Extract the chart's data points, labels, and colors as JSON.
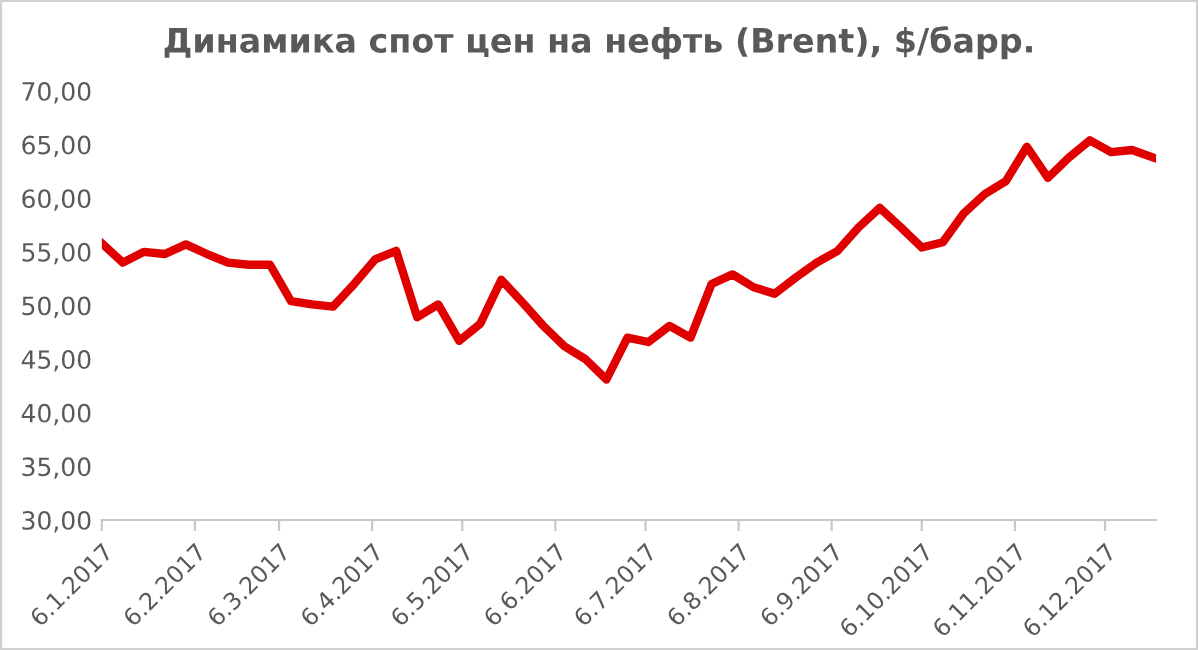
{
  "chart_data": {
    "type": "line",
    "title": "Динамика спот цен на нефть (Brent), $/барр.",
    "x": [
      "2017-01-06",
      "2017-01-13",
      "2017-01-20",
      "2017-01-27",
      "2017-02-03",
      "2017-02-10",
      "2017-02-17",
      "2017-02-24",
      "2017-03-03",
      "2017-03-10",
      "2017-03-17",
      "2017-03-24",
      "2017-03-31",
      "2017-04-07",
      "2017-04-14",
      "2017-04-21",
      "2017-04-28",
      "2017-05-05",
      "2017-05-12",
      "2017-05-19",
      "2017-05-26",
      "2017-06-02",
      "2017-06-09",
      "2017-06-16",
      "2017-06-23",
      "2017-06-30",
      "2017-07-07",
      "2017-07-14",
      "2017-07-21",
      "2017-07-28",
      "2017-08-04",
      "2017-08-11",
      "2017-08-18",
      "2017-08-25",
      "2017-09-01",
      "2017-09-08",
      "2017-09-15",
      "2017-09-22",
      "2017-09-29",
      "2017-10-06",
      "2017-10-13",
      "2017-10-20",
      "2017-10-27",
      "2017-11-03",
      "2017-11-10",
      "2017-11-17",
      "2017-11-24",
      "2017-12-01",
      "2017-12-08",
      "2017-12-15",
      "2017-12-22"
    ],
    "series": [
      {
        "color": "#e00000",
        "values": [
          55.8,
          54.0,
          55.0,
          54.8,
          55.7,
          54.8,
          54.0,
          53.8,
          53.8,
          50.4,
          50.1,
          49.9,
          52.0,
          54.3,
          55.1,
          48.9,
          50.1,
          46.7,
          48.3,
          52.4,
          50.3,
          48.1,
          46.2,
          45.0,
          43.1,
          47.0,
          46.6,
          48.1,
          47.0,
          52.0,
          52.9,
          51.7,
          51.1,
          52.6,
          54.0,
          55.1,
          57.3,
          59.1,
          57.3,
          55.4,
          55.9,
          58.6,
          60.4,
          61.6,
          64.8,
          61.9,
          63.8,
          65.4,
          64.3,
          64.5,
          63.8
        ]
      }
    ],
    "xlim": [
      "2017-01-06",
      "2017-12-23"
    ],
    "xticks": [
      {
        "value": "2017-01-06",
        "label": "6.1.2017"
      },
      {
        "value": "2017-02-06",
        "label": "6.2.2017"
      },
      {
        "value": "2017-03-06",
        "label": "6.3.2017"
      },
      {
        "value": "2017-04-06",
        "label": "6.4.2017"
      },
      {
        "value": "2017-05-06",
        "label": "6.5.2017"
      },
      {
        "value": "2017-06-06",
        "label": "6.6.2017"
      },
      {
        "value": "2017-07-06",
        "label": "6.7.2017"
      },
      {
        "value": "2017-08-06",
        "label": "6.8.2017"
      },
      {
        "value": "2017-09-06",
        "label": "6.9.2017"
      },
      {
        "value": "2017-10-06",
        "label": "6.10.2017"
      },
      {
        "value": "2017-11-06",
        "label": "6.11.2017"
      },
      {
        "value": "2017-12-06",
        "label": "6.12.2017"
      }
    ],
    "ylim": [
      30,
      70
    ],
    "yticks": [
      {
        "value": 30,
        "label": "30,00"
      },
      {
        "value": 35,
        "label": "35,00"
      },
      {
        "value": 40,
        "label": "40,00"
      },
      {
        "value": 45,
        "label": "45,00"
      },
      {
        "value": 50,
        "label": "50,00"
      },
      {
        "value": 55,
        "label": "55,00"
      },
      {
        "value": 60,
        "label": "60,00"
      },
      {
        "value": 65,
        "label": "65,00"
      },
      {
        "value": 70,
        "label": "70,00"
      }
    ],
    "grid": false,
    "legend": false,
    "marker": "none",
    "line_style": "solid"
  }
}
